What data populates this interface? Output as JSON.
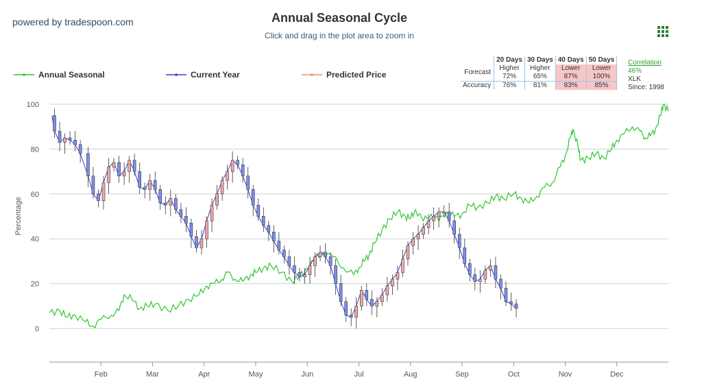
{
  "brand": "powered by tradespoon.com",
  "title": "Annual Seasonal Cycle",
  "subtitle": "Click and drag in the plot area to zoom in",
  "legend": {
    "annual": "Annual Seasonal",
    "current": "Current Year",
    "predicted": "Predicted Price"
  },
  "colors": {
    "annual": "#2ec62e",
    "current": "#3b3bcf",
    "up_candle": "#f2a7a7",
    "down_candle": "#7b8ff2",
    "predicted": "#f08c6e",
    "grid": "#cfcfcf"
  },
  "stats": {
    "headers": [
      "20 Days",
      "30 Days",
      "40 Days",
      "50 Days"
    ],
    "forecast_label": "Forecast",
    "accuracy_label": "Accuracy",
    "forecast_dir": [
      "Higher",
      "Higher",
      "Lower",
      "Lower"
    ],
    "forecast_pct": [
      "72%",
      "65%",
      "87%",
      "100%"
    ],
    "accuracy": [
      "76%",
      "81%",
      "83%",
      "85%"
    ]
  },
  "correlation": {
    "label": "Correlation",
    "value": "46%",
    "ticker": "XLK",
    "since": "Since: 1998"
  },
  "chart_data": {
    "type": "line",
    "ylabel": "Percentage",
    "ylim": [
      -15,
      100
    ],
    "yticks": [
      0,
      20,
      40,
      60,
      80,
      100
    ],
    "x_unit": "month index (0 = Jan 1, 12 = Dec 31)",
    "xlim": [
      0,
      12
    ],
    "month_ticks": [
      {
        "label": "Feb",
        "x": 1.0
      },
      {
        "label": "Mar",
        "x": 2.0
      },
      {
        "label": "Apr",
        "x": 3.0
      },
      {
        "label": "May",
        "x": 4.0
      },
      {
        "label": "Jun",
        "x": 5.0
      },
      {
        "label": "Jul",
        "x": 6.0
      },
      {
        "label": "Aug",
        "x": 7.0
      },
      {
        "label": "Sep",
        "x": 8.0
      },
      {
        "label": "Oct",
        "x": 9.0
      },
      {
        "label": "Nov",
        "x": 10.0
      },
      {
        "label": "Dec",
        "x": 11.0
      }
    ],
    "series": [
      {
        "name": "Annual Seasonal",
        "points": [
          [
            0.0,
            7
          ],
          [
            0.2,
            8
          ],
          [
            0.35,
            5
          ],
          [
            0.5,
            6
          ],
          [
            0.7,
            3
          ],
          [
            0.85,
            1
          ],
          [
            1.0,
            4
          ],
          [
            1.2,
            6
          ],
          [
            1.35,
            8
          ],
          [
            1.45,
            15
          ],
          [
            1.6,
            13
          ],
          [
            1.75,
            9
          ],
          [
            1.9,
            10
          ],
          [
            2.05,
            11
          ],
          [
            2.3,
            8
          ],
          [
            2.5,
            10
          ],
          [
            2.7,
            13
          ],
          [
            2.9,
            15
          ],
          [
            3.05,
            19
          ],
          [
            3.2,
            20
          ],
          [
            3.35,
            22
          ],
          [
            3.45,
            25
          ],
          [
            3.6,
            22
          ],
          [
            3.75,
            21
          ],
          [
            3.9,
            24
          ],
          [
            4.0,
            25
          ],
          [
            4.15,
            27
          ],
          [
            4.3,
            28
          ],
          [
            4.5,
            25
          ],
          [
            4.7,
            21
          ],
          [
            4.85,
            23
          ],
          [
            5.0,
            27
          ],
          [
            5.15,
            31
          ],
          [
            5.3,
            34
          ],
          [
            5.5,
            32
          ],
          [
            5.7,
            27
          ],
          [
            5.9,
            24
          ],
          [
            6.0,
            27
          ],
          [
            6.1,
            30
          ],
          [
            6.2,
            33
          ],
          [
            6.3,
            38
          ],
          [
            6.45,
            44
          ],
          [
            6.6,
            49
          ],
          [
            6.75,
            52
          ],
          [
            6.9,
            50
          ],
          [
            7.0,
            49
          ],
          [
            7.1,
            53
          ],
          [
            7.25,
            48
          ],
          [
            7.4,
            51
          ],
          [
            7.55,
            48
          ],
          [
            7.7,
            52
          ],
          [
            7.85,
            50
          ],
          [
            8.0,
            51
          ],
          [
            8.15,
            55
          ],
          [
            8.3,
            54
          ],
          [
            8.5,
            56
          ],
          [
            8.65,
            59
          ],
          [
            8.8,
            58
          ],
          [
            9.0,
            60
          ],
          [
            9.15,
            58
          ],
          [
            9.3,
            56
          ],
          [
            9.45,
            59
          ],
          [
            9.6,
            63
          ],
          [
            9.75,
            65
          ],
          [
            9.9,
            72
          ],
          [
            10.0,
            77
          ],
          [
            10.1,
            85
          ],
          [
            10.15,
            89
          ],
          [
            10.25,
            81
          ],
          [
            10.3,
            75
          ],
          [
            10.45,
            76
          ],
          [
            10.6,
            78
          ],
          [
            10.75,
            76
          ],
          [
            10.9,
            80
          ],
          [
            11.0,
            84
          ],
          [
            11.15,
            87
          ],
          [
            11.3,
            90
          ],
          [
            11.45,
            88
          ],
          [
            11.55,
            85
          ],
          [
            11.65,
            86
          ],
          [
            11.75,
            89
          ],
          [
            11.85,
            95
          ],
          [
            11.9,
            100
          ],
          [
            12.0,
            97
          ]
        ]
      },
      {
        "name": "Current Year",
        "points": [
          [
            0.05,
            95
          ],
          [
            0.1,
            88
          ],
          [
            0.2,
            83
          ],
          [
            0.3,
            85
          ],
          [
            0.4,
            84
          ],
          [
            0.5,
            82
          ],
          [
            0.6,
            78
          ],
          [
            0.75,
            68
          ],
          [
            0.85,
            60
          ],
          [
            0.95,
            57
          ],
          [
            1.05,
            65
          ],
          [
            1.15,
            72
          ],
          [
            1.25,
            74
          ],
          [
            1.35,
            68
          ],
          [
            1.45,
            70
          ],
          [
            1.55,
            75
          ],
          [
            1.65,
            70
          ],
          [
            1.75,
            63
          ],
          [
            1.85,
            62
          ],
          [
            1.95,
            66
          ],
          [
            2.05,
            62
          ],
          [
            2.15,
            56
          ],
          [
            2.25,
            55
          ],
          [
            2.35,
            58
          ],
          [
            2.45,
            53
          ],
          [
            2.55,
            50
          ],
          [
            2.65,
            47
          ],
          [
            2.75,
            41
          ],
          [
            2.85,
            36
          ],
          [
            2.95,
            40
          ],
          [
            3.05,
            48
          ],
          [
            3.15,
            55
          ],
          [
            3.25,
            60
          ],
          [
            3.35,
            66
          ],
          [
            3.45,
            70
          ],
          [
            3.55,
            75
          ],
          [
            3.65,
            73
          ],
          [
            3.75,
            68
          ],
          [
            3.85,
            62
          ],
          [
            3.95,
            55
          ],
          [
            4.05,
            50
          ],
          [
            4.15,
            46
          ],
          [
            4.25,
            43
          ],
          [
            4.35,
            39
          ],
          [
            4.45,
            35
          ],
          [
            4.55,
            32
          ],
          [
            4.65,
            28
          ],
          [
            4.75,
            25
          ],
          [
            4.85,
            23
          ],
          [
            4.95,
            24
          ],
          [
            5.05,
            28
          ],
          [
            5.15,
            32
          ],
          [
            5.25,
            34
          ],
          [
            5.35,
            32
          ],
          [
            5.45,
            28
          ],
          [
            5.55,
            20
          ],
          [
            5.65,
            12
          ],
          [
            5.75,
            6
          ],
          [
            5.85,
            5
          ],
          [
            5.95,
            10
          ],
          [
            6.05,
            17
          ],
          [
            6.15,
            13
          ],
          [
            6.25,
            10
          ],
          [
            6.35,
            12
          ],
          [
            6.45,
            15
          ],
          [
            6.55,
            19
          ],
          [
            6.65,
            22
          ],
          [
            6.75,
            25
          ],
          [
            6.85,
            31
          ],
          [
            6.95,
            37
          ],
          [
            7.05,
            40
          ],
          [
            7.15,
            42
          ],
          [
            7.25,
            45
          ],
          [
            7.35,
            48
          ],
          [
            7.45,
            50
          ],
          [
            7.55,
            52
          ],
          [
            7.65,
            52
          ],
          [
            7.75,
            48
          ],
          [
            7.85,
            42
          ],
          [
            7.95,
            36
          ],
          [
            8.05,
            29
          ],
          [
            8.15,
            24
          ],
          [
            8.25,
            21
          ],
          [
            8.35,
            22
          ],
          [
            8.45,
            26
          ],
          [
            8.55,
            28
          ],
          [
            8.65,
            22
          ],
          [
            8.75,
            18
          ],
          [
            8.85,
            12
          ],
          [
            8.95,
            11
          ],
          [
            9.05,
            9
          ]
        ]
      }
    ]
  }
}
